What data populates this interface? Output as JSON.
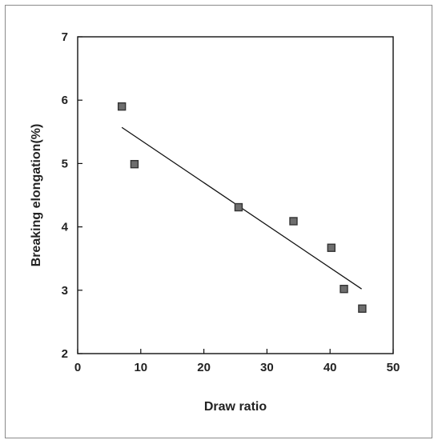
{
  "chart_data": {
    "type": "scatter",
    "xlabel": "Draw ratio",
    "ylabel": "Breaking elongation(%)",
    "xlim": [
      0,
      50
    ],
    "ylim": [
      2,
      7
    ],
    "xticks": [
      "0",
      "10",
      "20",
      "30",
      "40",
      "50"
    ],
    "yticks": [
      "2",
      "3",
      "4",
      "5",
      "6",
      "7"
    ],
    "grid": false,
    "series": [
      {
        "marker": "square",
        "x": [
          7,
          9,
          25.5,
          34.2,
          40.2,
          42.2,
          45.1
        ],
        "y": [
          5.9,
          4.99,
          4.31,
          4.09,
          3.67,
          3.02,
          2.71
        ]
      }
    ],
    "trendline": {
      "type": "linear",
      "x": [
        7,
        45
      ],
      "y": [
        5.57,
        3.02
      ]
    },
    "colors": {
      "marker_fill": "#6e6e6e",
      "marker_stroke": "#333333",
      "line": "#111111",
      "axis": "#111111"
    }
  }
}
